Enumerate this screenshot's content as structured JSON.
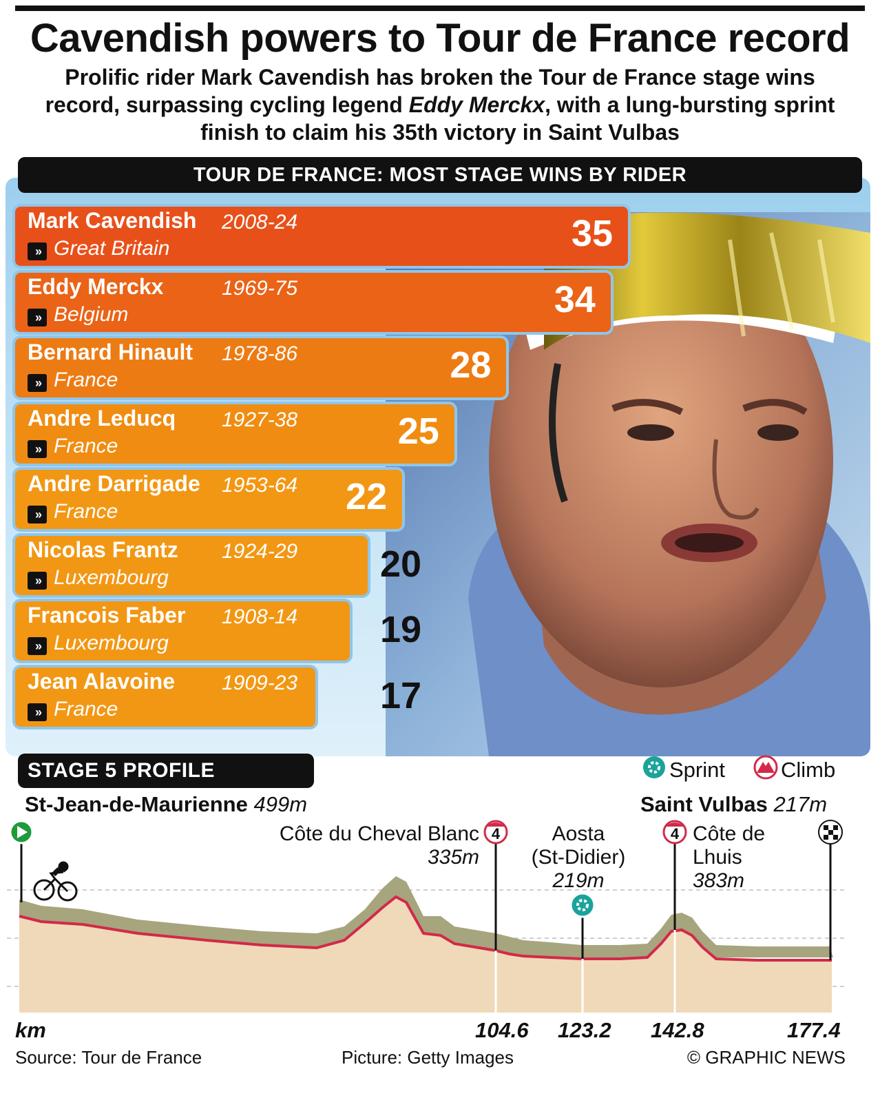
{
  "headline": "Cavendish powers to Tour de France record",
  "standfirst": {
    "part1": "Prolific rider Mark Cavendish has broken the Tour de France stage wins record, surpassing cycling legend ",
    "emphasis": "Eddy Merckx",
    "part2": ", with a lung-bursting sprint finish to claim his 35th victory in Saint Vulbas"
  },
  "chart_data": {
    "type": "bar",
    "title": "TOUR DE FRANCE: MOST STAGE WINS BY RIDER",
    "categories": [
      "Mark Cavendish",
      "Eddy Merckx",
      "Bernard Hinault",
      "Andre Leducq",
      "Andre Darrigade",
      "Nicolas Frantz",
      "Francois Faber",
      "Jean Alavoine"
    ],
    "years": [
      "2008-24",
      "1969-75",
      "1978-86",
      "1927-38",
      "1953-64",
      "1924-29",
      "1908-14",
      "1909-23"
    ],
    "countries": [
      "Great Britain",
      "Belgium",
      "France",
      "France",
      "France",
      "Luxembourg",
      "Luxembourg",
      "France"
    ],
    "values": [
      35,
      34,
      28,
      25,
      22,
      20,
      19,
      17
    ],
    "colors": [
      "#e8501a",
      "#ea6317",
      "#ed7b14",
      "#f08c12",
      "#f29714",
      "#f29714",
      "#f29714",
      "#f29714"
    ]
  },
  "stage": {
    "title": "STAGE 5 PROFILE",
    "legend": {
      "sprint": "Sprint",
      "climb": "Climb"
    },
    "start": {
      "name": "St-Jean-de-Maurienne",
      "alt": "499m"
    },
    "finish": {
      "name": "Saint Vulbas",
      "alt": "217m"
    },
    "climb1": {
      "name": "Côte du Cheval Blanc",
      "alt": "335m",
      "cat": "4"
    },
    "sprint": {
      "line1": "Aosta",
      "line2": "(St-Didier)",
      "alt": "219m"
    },
    "climb2": {
      "line1": "Côte de",
      "line2": "Lhuis",
      "alt": "383m",
      "cat": "4"
    },
    "km_label": "km",
    "markers": [
      "104.6",
      "123.2",
      "142.8",
      "177.4"
    ]
  },
  "footer": {
    "source": "Source: Tour de France",
    "picture": "Picture: Getty Images",
    "credit": "© GRAPHIC NEWS"
  },
  "colors": {
    "panel": "#a8d6f1",
    "profile_fill": "#f0d9b8",
    "profile_side": "#a7a57e",
    "profile_line": "#d12a4a",
    "sprint": "#1aa39a"
  }
}
